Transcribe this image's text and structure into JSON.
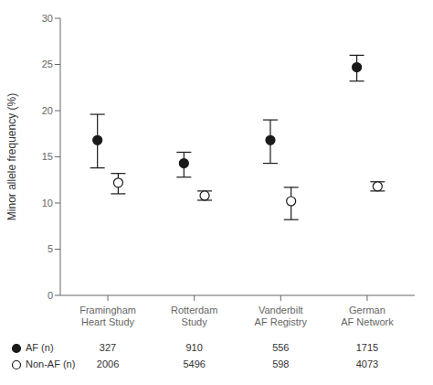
{
  "chart_data": {
    "type": "scatter",
    "categories": [
      "Framingham\nHeart Study",
      "Rotterdam\nStudy",
      "Vanderbilt\nAF Registry",
      "German\nAF Network"
    ],
    "ylabel": "Minor allele frequency (%)",
    "ylim": [
      0,
      30
    ],
    "yticks": [
      0,
      5,
      10,
      15,
      20,
      25,
      30
    ],
    "grid": false,
    "series": [
      {
        "name": "AF (n)",
        "color": "#1a1a1a",
        "marker": "filled_circle",
        "values": [
          16.8,
          14.3,
          16.8,
          24.7
        ],
        "yerr_low": [
          3.0,
          1.5,
          2.5,
          1.5
        ],
        "yerr_high": [
          2.8,
          1.2,
          2.2,
          1.3
        ],
        "n": [
          327,
          910,
          556,
          1715
        ]
      },
      {
        "name": "Non-AF (n)",
        "color": "#1a1a1a",
        "marker": "open_circle",
        "values": [
          12.2,
          10.8,
          10.2,
          11.8
        ],
        "yerr_low": [
          1.2,
          0.5,
          2.0,
          0.5
        ],
        "yerr_high": [
          1.0,
          0.5,
          1.5,
          0.5
        ],
        "n": [
          2006,
          5496,
          598,
          4073
        ]
      }
    ]
  }
}
